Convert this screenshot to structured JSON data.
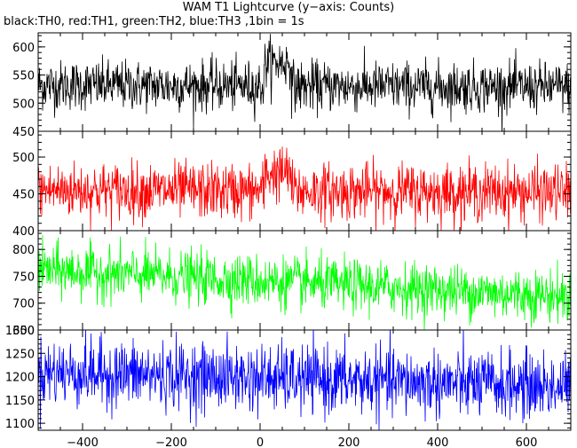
{
  "chart_data": {
    "type": "line",
    "title": "WAM T1 Lightcurve (y−axis: Counts)",
    "subtitle": "black:TH0, red:TH1, green:TH2, blue:TH3 ,1bin = 1s",
    "xlim": [
      -500,
      700
    ],
    "xticks": [
      "−400",
      "−200",
      "0",
      "200",
      "400",
      "600"
    ],
    "xtick_values": [
      -400,
      -200,
      0,
      200,
      400,
      600
    ],
    "grid": false,
    "panels": [
      {
        "name": "TH0",
        "color": "#000000",
        "ylim": [
          450,
          625
        ],
        "yticks": [
          450,
          500,
          550,
          600
        ],
        "ytick_labels": [
          "450",
          "500",
          "550",
          "600"
        ],
        "start_mean": 532,
        "end_mean": 528,
        "noise_sd": 22,
        "features": [
          {
            "x": [
              10,
              70
            ],
            "mean": 572
          }
        ]
      },
      {
        "name": "TH1",
        "color": "#ff0000",
        "ylim": [
          400,
          535
        ],
        "yticks": [
          400,
          450,
          500
        ],
        "ytick_labels": [
          "400",
          "450",
          "500"
        ],
        "start_mean": 455,
        "end_mean": 452,
        "noise_sd": 19,
        "features": [
          {
            "x": [
              10,
              70
            ],
            "mean": 478
          }
        ]
      },
      {
        "name": "TH2",
        "color": "#00ff00",
        "ylim": [
          650,
          835
        ],
        "yticks": [
          650,
          700,
          750,
          800
        ],
        "ytick_labels": [
          "650",
          "700",
          "750",
          "800"
        ],
        "start_mean": 762,
        "end_mean": 712,
        "noise_sd": 24,
        "features": []
      },
      {
        "name": "TH3",
        "color": "#0000ff",
        "ylim": [
          1085,
          1300
        ],
        "yticks": [
          1100,
          1150,
          1200,
          1250,
          1300
        ],
        "ytick_labels": [
          "1100",
          "1150",
          "1200",
          "1250",
          "1300"
        ],
        "start_mean": 1210,
        "end_mean": 1178,
        "noise_sd": 36,
        "features": []
      }
    ]
  }
}
